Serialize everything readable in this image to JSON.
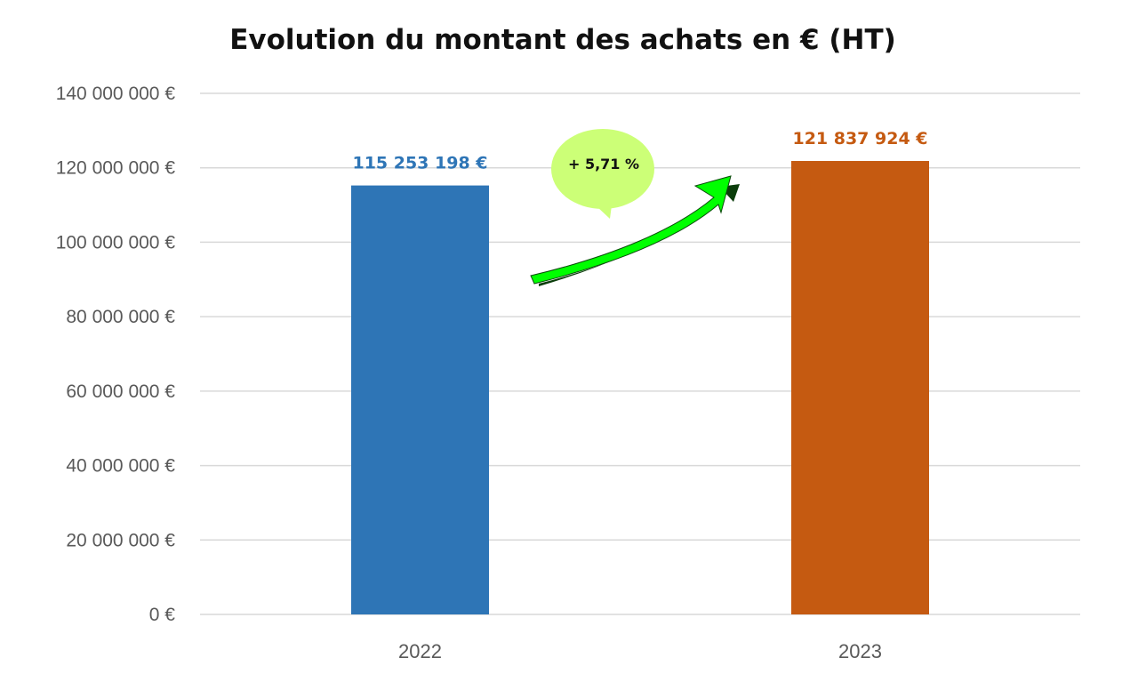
{
  "chart_data": {
    "type": "bar",
    "title": "Evolution du montant des achats en € (HT)",
    "categories": [
      "2022",
      "2023"
    ],
    "values": [
      115253198,
      121837924
    ],
    "data_labels": [
      "115 253 198 €",
      "121 837 924 €"
    ],
    "colors": [
      "#2e75b6",
      "#c55a11"
    ],
    "ylim": [
      0,
      140000000
    ],
    "y_ticks": [
      0,
      20000000,
      40000000,
      60000000,
      80000000,
      100000000,
      120000000,
      140000000
    ],
    "y_tick_labels": [
      "0 €",
      "20 000 000 €",
      "40 000 000 €",
      "60 000 000 €",
      "80 000 000 €",
      "100 000 000 €",
      "120 000 000 €",
      "140 000 000 €"
    ],
    "grid": true,
    "legend": "none",
    "annotation": {
      "text": "+ 5,71 %",
      "bubble_color": "#ccff77",
      "arrow_color": "#00ff00"
    }
  }
}
